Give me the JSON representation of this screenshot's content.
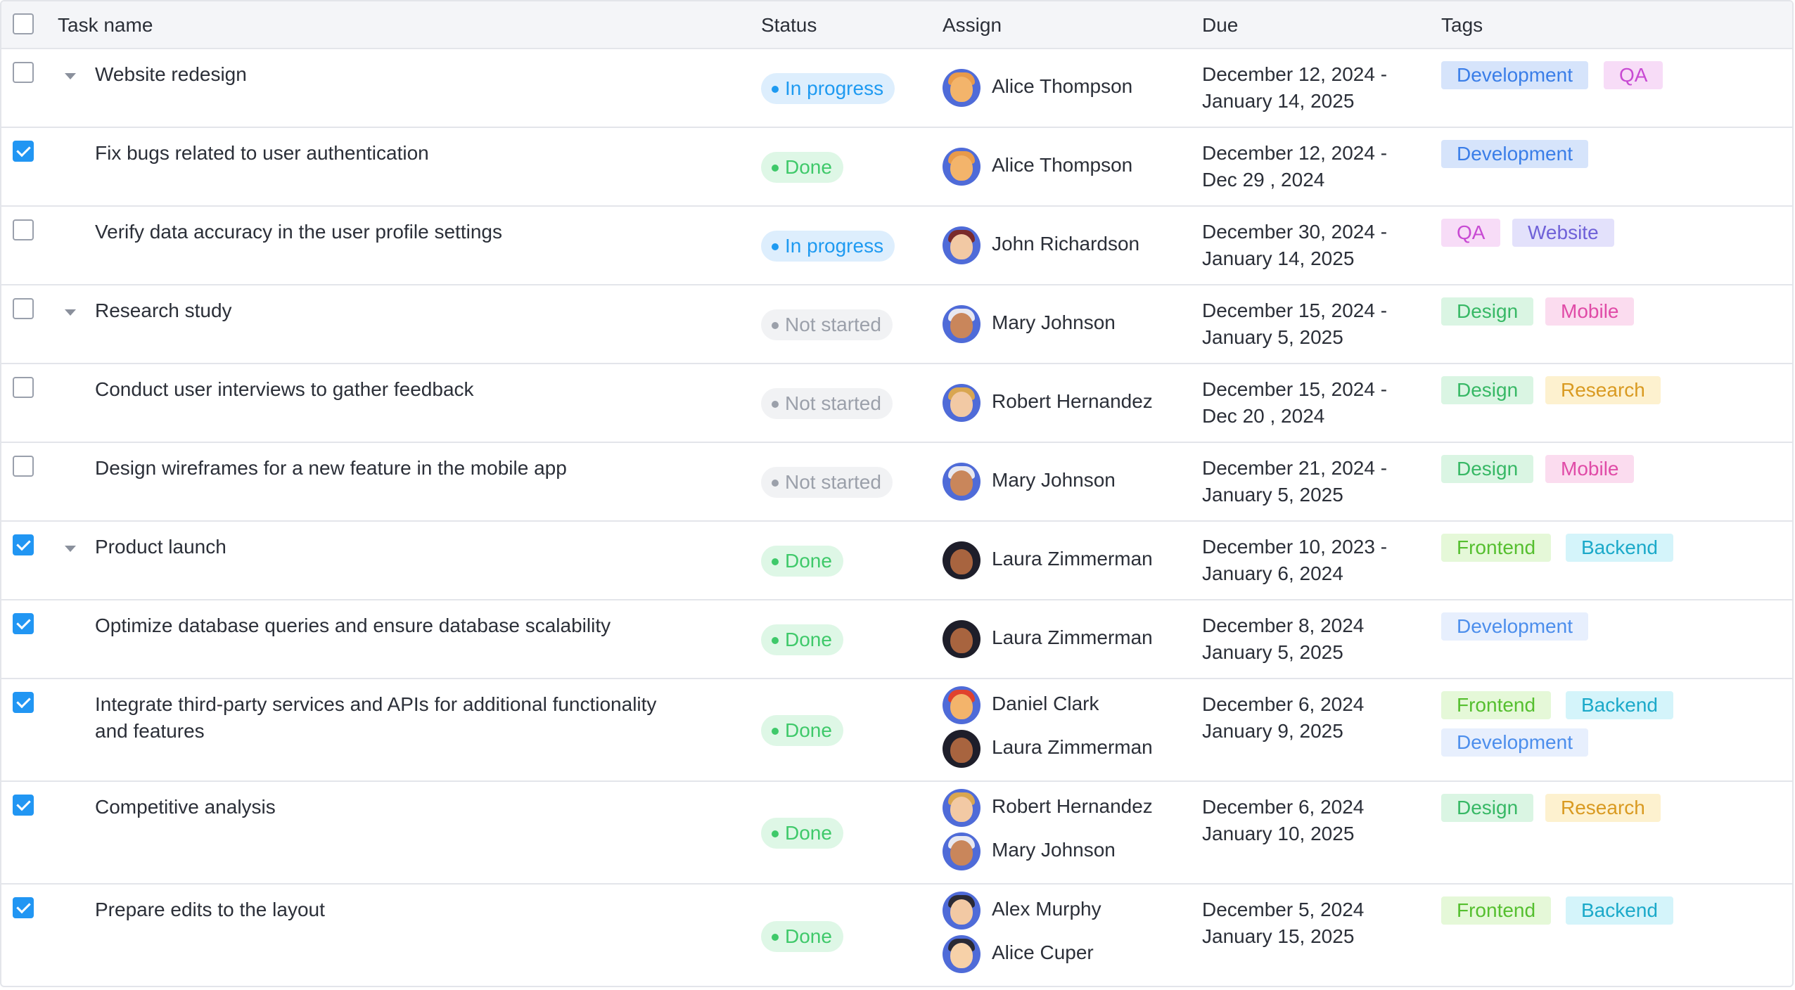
{
  "columns": {
    "task": "Task name",
    "status": "Status",
    "assign": "Assign",
    "due": "Due",
    "tags": "Tags"
  },
  "header_checkbox_checked": false,
  "rows": [
    {
      "checked": false,
      "collapsible": true,
      "task": "Website redesign",
      "status": "In progress",
      "status_kind": "progress",
      "assignees": [
        {
          "name": "Alice Thompson",
          "avatar": "alice"
        }
      ],
      "due_line1": "December 12, 2024 -",
      "due_line2": "January 14, 2025",
      "tags": [
        {
          "label": "Development",
          "kind": "development"
        },
        {
          "label": "QA",
          "kind": "qa"
        }
      ]
    },
    {
      "checked": true,
      "collapsible": false,
      "task": "Fix bugs related to user authentication",
      "status": "Done",
      "status_kind": "done",
      "assignees": [
        {
          "name": "Alice Thompson",
          "avatar": "alice"
        }
      ],
      "due_line1": "December 12, 2024 -",
      "due_line2": "Dec 29 , 2024",
      "tags": [
        {
          "label": "Development",
          "kind": "development"
        }
      ]
    },
    {
      "checked": false,
      "collapsible": false,
      "task": "Verify data accuracy in the user profile settings",
      "status": "In progress",
      "status_kind": "progress",
      "assignees": [
        {
          "name": "John Richardson",
          "avatar": "john"
        }
      ],
      "due_line1": "December 30, 2024 -",
      "due_line2": "January 14, 2025",
      "tags": [
        {
          "label": "QA",
          "kind": "qa"
        },
        {
          "label": "Website",
          "kind": "website"
        }
      ]
    },
    {
      "checked": false,
      "collapsible": true,
      "task": "Research study",
      "status": "Not started",
      "status_kind": "notstarted",
      "assignees": [
        {
          "name": "Mary Johnson",
          "avatar": "mary"
        }
      ],
      "due_line1": "December 15, 2024 -",
      "due_line2": "January 5, 2025",
      "tags": [
        {
          "label": "Design",
          "kind": "design"
        },
        {
          "label": "Mobile",
          "kind": "mobile"
        }
      ]
    },
    {
      "checked": false,
      "collapsible": false,
      "task": "Conduct user interviews to gather feedback",
      "status": "Not started",
      "status_kind": "notstarted",
      "assignees": [
        {
          "name": "Robert Hernandez",
          "avatar": "robert"
        }
      ],
      "due_line1": "December 15, 2024 -",
      "due_line2": "Dec 20 , 2024",
      "tags": [
        {
          "label": "Design",
          "kind": "design"
        },
        {
          "label": "Research",
          "kind": "research"
        }
      ]
    },
    {
      "checked": false,
      "collapsible": false,
      "task": "Design wireframes for a new feature in the mobile app",
      "status": "Not started",
      "status_kind": "notstarted",
      "assignees": [
        {
          "name": "Mary Johnson",
          "avatar": "mary"
        }
      ],
      "due_line1": "December 21, 2024 -",
      "due_line2": "January 5, 2025",
      "tags": [
        {
          "label": "Design",
          "kind": "design"
        },
        {
          "label": "Mobile",
          "kind": "mobile"
        }
      ]
    },
    {
      "checked": true,
      "collapsible": true,
      "task": "Product launch",
      "status": "Done",
      "status_kind": "done",
      "assignees": [
        {
          "name": "Laura Zimmerman",
          "avatar": "laura"
        }
      ],
      "due_line1": "December 10, 2023 -",
      "due_line2": "January 6, 2024",
      "tags": [
        {
          "label": "Frontend",
          "kind": "frontend"
        },
        {
          "label": "Backend",
          "kind": "backend"
        }
      ]
    },
    {
      "checked": true,
      "collapsible": false,
      "task": "Optimize database queries and ensure database scalability",
      "status": "Done",
      "status_kind": "done",
      "assignees": [
        {
          "name": "Laura Zimmerman",
          "avatar": "laura"
        }
      ],
      "due_line1": "December 8, 2024",
      "due_line2": "January 5, 2025",
      "tags": [
        {
          "label": "Development",
          "kind": "development-light"
        }
      ]
    },
    {
      "checked": true,
      "collapsible": false,
      "task_line1": "Integrate third-party services and APIs for additional functionality",
      "task_line2": "and features",
      "status": "Done",
      "status_kind": "done",
      "assignees": [
        {
          "name": "Daniel Clark",
          "avatar": "daniel"
        },
        {
          "name": "Laura Zimmerman",
          "avatar": "laura"
        }
      ],
      "due_line1": "December 6, 2024",
      "due_line2": "January 9, 2025",
      "tags": [
        {
          "label": "Frontend",
          "kind": "frontend"
        },
        {
          "label": "Backend",
          "kind": "backend"
        },
        {
          "label": "Development",
          "kind": "development-light"
        }
      ]
    },
    {
      "checked": true,
      "collapsible": false,
      "task": "Competitive analysis",
      "status": "Done",
      "status_kind": "done",
      "assignees": [
        {
          "name": "Robert Hernandez",
          "avatar": "robert"
        },
        {
          "name": "Mary Johnson",
          "avatar": "mary"
        }
      ],
      "due_line1": "December 6, 2024",
      "due_line2": "January 10, 2025",
      "tags": [
        {
          "label": "Design",
          "kind": "design"
        },
        {
          "label": "Research",
          "kind": "research"
        }
      ]
    },
    {
      "checked": true,
      "collapsible": false,
      "task": "Prepare edits to the layout",
      "status": "Done",
      "status_kind": "done",
      "assignees": [
        {
          "name": "Alex Murphy",
          "avatar": "alex"
        },
        {
          "name": "Alice Cuper",
          "avatar": "cuper"
        }
      ],
      "due_line1": "December 5, 2024",
      "due_line2": "January 15, 2025",
      "tags": [
        {
          "label": "Frontend",
          "kind": "frontend"
        },
        {
          "label": "Backend",
          "kind": "backend"
        }
      ]
    }
  ]
}
